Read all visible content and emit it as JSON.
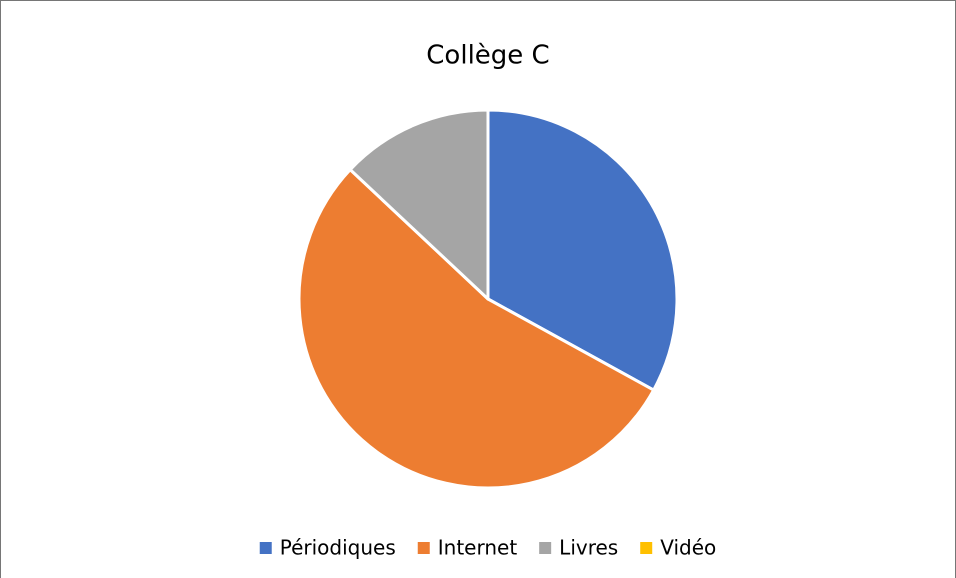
{
  "chart_data": {
    "type": "pie",
    "title": "Collège C",
    "categories": [
      "Périodiques",
      "Internet",
      "Livres",
      "Vidéo"
    ],
    "values": [
      33,
      54,
      13,
      0
    ],
    "colors": [
      "#4472c4",
      "#ed7d31",
      "#a5a5a5",
      "#ffc000"
    ],
    "legend": "bottom"
  }
}
